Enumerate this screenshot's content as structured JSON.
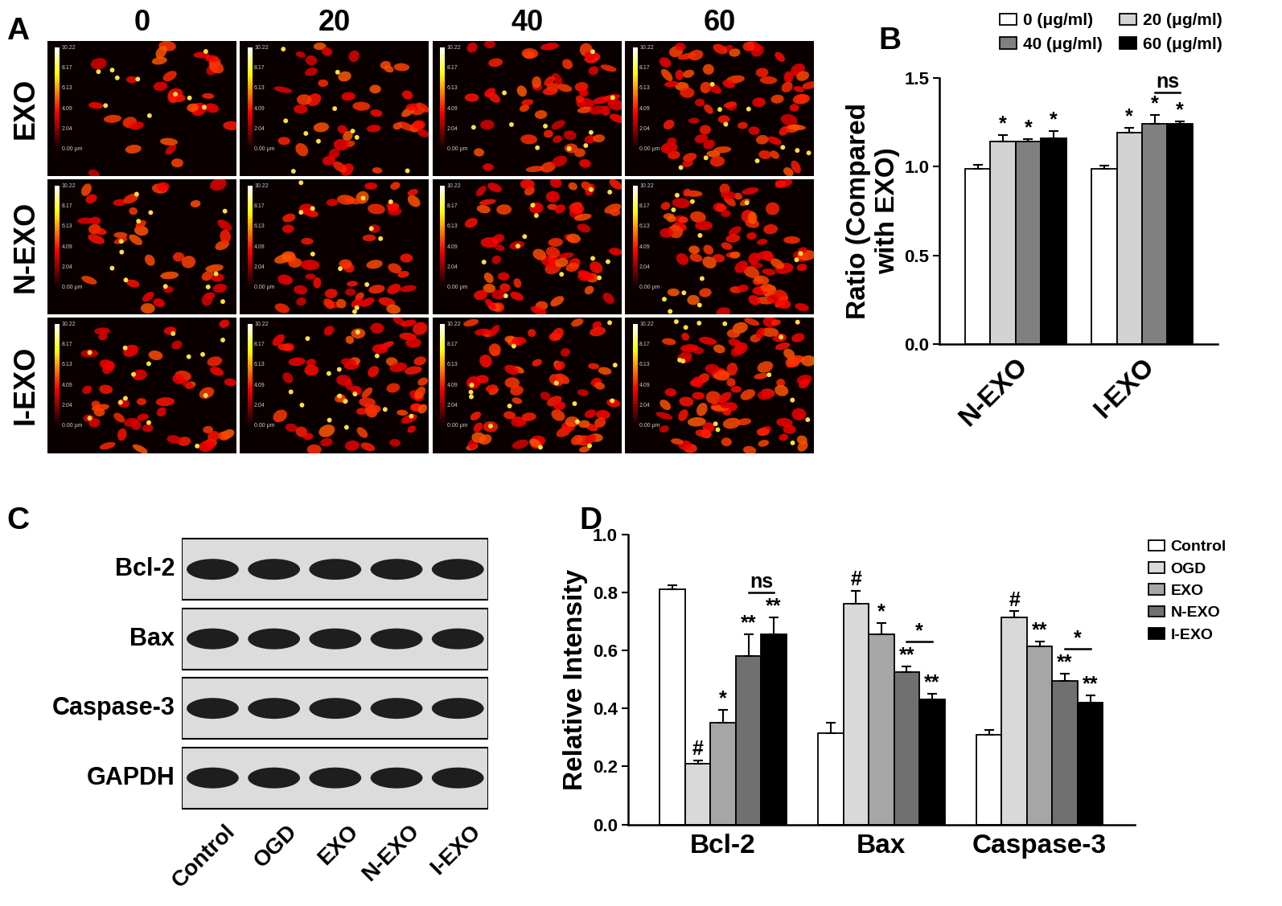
{
  "panel_labels": [
    "A",
    "B",
    "C",
    "D"
  ],
  "image_grid": {
    "columns": [
      "0",
      "20",
      "40",
      "60"
    ],
    "rows": [
      "EXO",
      "N-EXO",
      "I-EXO"
    ],
    "scale_labels": [
      "10.22",
      "8.17",
      "6.13",
      "4.09",
      "2.04",
      "0.00 μm"
    ]
  },
  "blot": {
    "rows": [
      "Bcl-2",
      "Bax",
      "Caspase-3",
      "GAPDH"
    ],
    "lanes": [
      "Control",
      "OGD",
      "EXO",
      "N-EXO",
      "I-EXO"
    ]
  },
  "chart_data": [
    {
      "type": "bar",
      "categories": [
        "N-EXO",
        "I-EXO"
      ],
      "y_label": "Ratio (Compared\nwith EXO)",
      "ylim": [
        0,
        1.5
      ],
      "yticks": [
        {
          "value": 0,
          "label": "0.0"
        },
        {
          "value": 0.5,
          "label": "0.5"
        },
        {
          "value": 1.0,
          "label": "1.0"
        },
        {
          "value": 1.5,
          "label": "1.5"
        }
      ],
      "legend": "upper right",
      "series": [
        {
          "name": "0 (μg/ml)",
          "color": "#ffffff",
          "values": [
            0.99,
            0.99
          ],
          "errors": [
            0.02,
            0.015
          ]
        },
        {
          "name": "20 (μg/ml)",
          "color": "#d3d3d3",
          "values": [
            1.14,
            1.19
          ],
          "errors": [
            0.04,
            0.03
          ],
          "marks": [
            "*",
            "*"
          ]
        },
        {
          "name": "40 (μg/ml)",
          "color": "#808080",
          "values": [
            1.14,
            1.24
          ],
          "errors": [
            0.015,
            0.05
          ],
          "marks": [
            "*",
            "*"
          ]
        },
        {
          "name": "60 (μg/ml)",
          "color": "#000000",
          "values": [
            1.16,
            1.24
          ],
          "errors": [
            0.04,
            0.015
          ],
          "marks": [
            "*",
            "*"
          ]
        }
      ],
      "brackets": [
        {
          "category": "I-EXO",
          "series": [
            "40 (μg/ml)",
            "60 (μg/ml)"
          ],
          "label": "ns"
        }
      ]
    },
    {
      "type": "bar",
      "categories": [
        "Bcl-2",
        "Bax",
        "Caspase-3"
      ],
      "y_label": "Relative Intensity",
      "ylim": [
        0,
        1.0
      ],
      "yticks": [
        {
          "value": 0,
          "label": "0.0"
        },
        {
          "value": 0.2,
          "label": "0.2"
        },
        {
          "value": 0.4,
          "label": "0.4"
        },
        {
          "value": 0.6,
          "label": "0.6"
        },
        {
          "value": 0.8,
          "label": "0.8"
        },
        {
          "value": 1.0,
          "label": "1.0"
        }
      ],
      "legend": "upper left",
      "series": [
        {
          "name": "Control",
          "color": "#ffffff",
          "values": [
            0.81,
            0.315,
            0.31
          ],
          "errors": [
            0.015,
            0.035,
            0.015
          ]
        },
        {
          "name": "OGD",
          "color": "#d9d9d9",
          "values": [
            0.21,
            0.76,
            0.715
          ],
          "errors": [
            0.012,
            0.045,
            0.02
          ],
          "marks": [
            "#",
            "#",
            "#"
          ]
        },
        {
          "name": "EXO",
          "color": "#a6a6a6",
          "values": [
            0.35,
            0.655,
            0.615
          ],
          "errors": [
            0.045,
            0.04,
            0.015
          ],
          "marks": [
            "*",
            "*",
            "**"
          ]
        },
        {
          "name": "N-EXO",
          "color": "#707070",
          "values": [
            0.58,
            0.525,
            0.495
          ],
          "errors": [
            0.075,
            0.02,
            0.025
          ],
          "marks": [
            "**",
            "**",
            "**"
          ]
        },
        {
          "name": "I-EXO",
          "color": "#000000",
          "values": [
            0.655,
            0.43,
            0.42
          ],
          "errors": [
            0.06,
            0.02,
            0.025
          ],
          "marks": [
            "**",
            "**",
            "**"
          ]
        }
      ],
      "brackets": [
        {
          "category": "Bcl-2",
          "series": [
            "N-EXO",
            "I-EXO"
          ],
          "label": "ns"
        },
        {
          "category": "Bax",
          "series": [
            "N-EXO",
            "I-EXO"
          ],
          "label": "*"
        },
        {
          "category": "Caspase-3",
          "series": [
            "N-EXO",
            "I-EXO"
          ],
          "label": "*"
        }
      ]
    }
  ]
}
